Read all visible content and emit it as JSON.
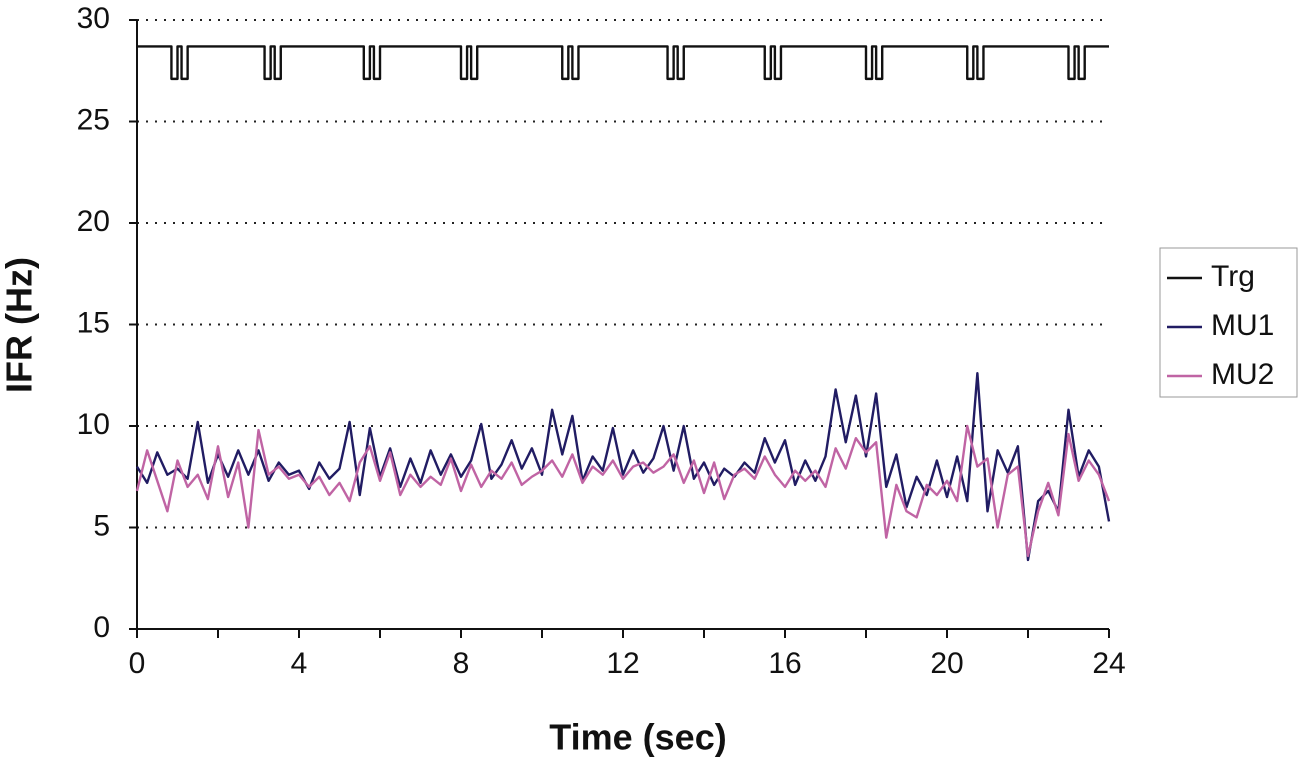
{
  "chart_data": {
    "type": "line",
    "xlabel": "Time (sec)",
    "ylabel": "IFR (Hz)",
    "xlim": [
      0,
      24
    ],
    "xticks": [
      0,
      4,
      8,
      12,
      16,
      20,
      24
    ],
    "xminor_ticks": [
      2,
      6,
      10,
      14,
      18,
      22
    ],
    "ylim": [
      0,
      30
    ],
    "yticks": [
      0,
      5,
      10,
      15,
      20,
      25,
      30
    ],
    "grid": true,
    "legend": "right",
    "x": [
      0,
      0.25,
      0.5,
      0.75,
      1,
      1.25,
      1.5,
      1.75,
      2,
      2.25,
      2.5,
      2.75,
      3,
      3.25,
      3.5,
      3.75,
      4,
      4.25,
      4.5,
      4.75,
      5,
      5.25,
      5.5,
      5.75,
      6,
      6.25,
      6.5,
      6.75,
      7,
      7.25,
      7.5,
      7.75,
      8,
      8.25,
      8.5,
      8.75,
      9,
      9.25,
      9.5,
      9.75,
      10,
      10.25,
      10.5,
      10.75,
      11,
      11.25,
      11.5,
      11.75,
      12,
      12.25,
      12.5,
      12.75,
      13,
      13.25,
      13.5,
      13.75,
      14,
      14.25,
      14.5,
      14.75,
      15,
      15.25,
      15.5,
      15.75,
      16,
      16.25,
      16.5,
      16.75,
      17,
      17.25,
      17.5,
      17.75,
      18,
      18.25,
      18.5,
      18.75,
      19,
      19.25,
      19.5,
      19.75,
      20,
      20.25,
      20.5,
      20.75,
      21,
      21.25,
      21.5,
      21.75,
      22,
      22.25,
      22.5,
      22.75,
      23,
      23.25,
      23.5,
      23.75,
      24
    ],
    "series": [
      {
        "name": "Trg",
        "color": "#111111",
        "x": [
          0,
          0.85,
          0.85,
          1,
          1,
          1.1,
          1.1,
          1.25,
          1.25,
          3.15,
          3.15,
          3.3,
          3.3,
          3.4,
          3.4,
          3.55,
          3.55,
          5.6,
          5.6,
          5.75,
          5.75,
          5.85,
          5.85,
          6,
          6,
          8,
          8,
          8.15,
          8.15,
          8.25,
          8.25,
          8.4,
          8.4,
          10.5,
          10.5,
          10.65,
          10.65,
          10.75,
          10.75,
          10.9,
          10.9,
          13.1,
          13.1,
          13.25,
          13.25,
          13.35,
          13.35,
          13.5,
          13.5,
          15.5,
          15.5,
          15.65,
          15.65,
          15.75,
          15.75,
          15.9,
          15.9,
          18,
          18,
          18.15,
          18.15,
          18.25,
          18.25,
          18.4,
          18.4,
          20.5,
          20.5,
          20.65,
          20.65,
          20.75,
          20.75,
          20.9,
          20.9,
          23,
          23,
          23.15,
          23.15,
          23.25,
          23.25,
          23.4,
          23.4,
          24
        ],
        "values": [
          28.7,
          28.7,
          27.1,
          27.1,
          28.7,
          28.7,
          27.1,
          27.1,
          28.7,
          28.7,
          27.1,
          27.1,
          28.7,
          28.7,
          27.1,
          27.1,
          28.7,
          28.7,
          27.1,
          27.1,
          28.7,
          28.7,
          27.1,
          27.1,
          28.7,
          28.7,
          27.1,
          27.1,
          28.7,
          28.7,
          27.1,
          27.1,
          28.7,
          28.7,
          27.1,
          27.1,
          28.7,
          28.7,
          27.1,
          27.1,
          28.7,
          28.7,
          27.1,
          27.1,
          28.7,
          28.7,
          27.1,
          27.1,
          28.7,
          28.7,
          27.1,
          27.1,
          28.7,
          28.7,
          27.1,
          27.1,
          28.7,
          28.7,
          27.1,
          27.1,
          28.7,
          28.7,
          27.1,
          27.1,
          28.7,
          28.7,
          27.1,
          27.1,
          28.7,
          28.7,
          27.1,
          27.1,
          28.7,
          28.7,
          27.1,
          27.1,
          28.7,
          28.7,
          27.1,
          27.1,
          28.7,
          28.7
        ]
      },
      {
        "name": "MU1",
        "color": "#211c63",
        "values": [
          8.0,
          7.2,
          8.7,
          7.6,
          7.9,
          7.4,
          10.2,
          7.2,
          8.6,
          7.5,
          8.8,
          7.6,
          8.8,
          7.3,
          8.2,
          7.6,
          7.8,
          6.9,
          8.2,
          7.4,
          7.9,
          10.2,
          6.6,
          9.9,
          7.5,
          8.9,
          7.0,
          8.4,
          7.2,
          8.8,
          7.6,
          8.6,
          7.5,
          8.3,
          10.1,
          7.4,
          8.1,
          9.3,
          7.9,
          8.9,
          7.6,
          10.8,
          8.6,
          10.5,
          7.3,
          8.5,
          7.8,
          9.9,
          7.6,
          8.8,
          7.7,
          8.4,
          10.0,
          7.8,
          10.0,
          7.4,
          8.2,
          7.1,
          7.9,
          7.5,
          8.2,
          7.7,
          9.4,
          8.2,
          9.3,
          7.1,
          8.3,
          7.3,
          8.5,
          11.8,
          9.2,
          11.5,
          8.5,
          11.6,
          7.0,
          8.6,
          6.0,
          7.5,
          6.6,
          8.3,
          6.5,
          8.5,
          6.3,
          12.6,
          5.8,
          8.8,
          7.7,
          9.0,
          3.4,
          6.3,
          6.8,
          5.8,
          10.8,
          7.5,
          8.8,
          8.0,
          5.3
        ]
      },
      {
        "name": "MU2",
        "color": "#c064a4",
        "values": [
          6.8,
          8.8,
          7.3,
          5.8,
          8.3,
          7.0,
          7.6,
          6.4,
          9.0,
          6.5,
          8.2,
          5.0,
          9.8,
          7.6,
          8.0,
          7.4,
          7.6,
          7.0,
          7.5,
          6.6,
          7.2,
          6.3,
          8.2,
          9.0,
          7.3,
          8.7,
          6.6,
          7.6,
          7.0,
          7.5,
          7.1,
          8.4,
          6.8,
          8.1,
          7.0,
          7.8,
          7.4,
          8.2,
          7.1,
          7.5,
          7.8,
          8.3,
          7.5,
          8.6,
          7.2,
          8.0,
          7.6,
          8.3,
          7.4,
          8.0,
          8.2,
          7.7,
          8.0,
          8.6,
          7.2,
          8.3,
          6.7,
          8.2,
          6.4,
          7.6,
          7.9,
          7.4,
          8.5,
          7.6,
          7.0,
          7.8,
          7.3,
          7.8,
          7.0,
          8.9,
          7.9,
          9.4,
          8.7,
          9.2,
          4.5,
          7.1,
          5.8,
          5.5,
          7.1,
          6.6,
          7.3,
          6.3,
          10.0,
          8.0,
          8.4,
          5.0,
          7.6,
          8.0,
          3.6,
          5.8,
          7.2,
          5.6,
          9.6,
          7.3,
          8.3,
          7.6,
          6.3
        ]
      }
    ]
  }
}
